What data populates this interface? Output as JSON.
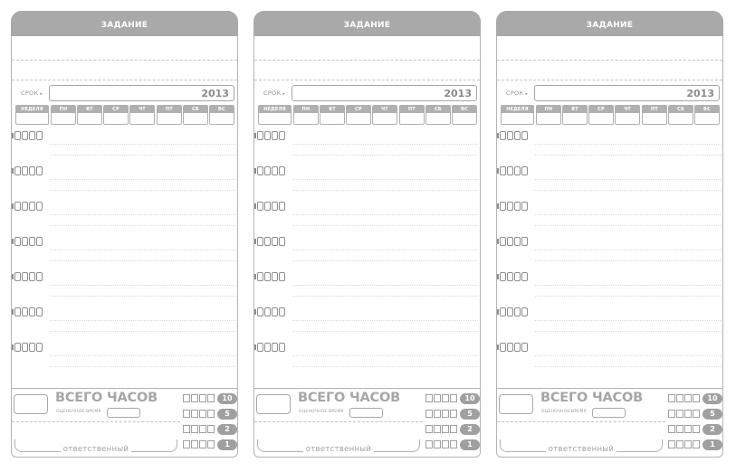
{
  "cards": [
    {
      "header": "ЗАДАНИЕ",
      "srok": "СРОК",
      "year": "2013"
    },
    {
      "header": "ЗАДАНИЕ",
      "srok": "СРОК",
      "year": "2013"
    },
    {
      "header": "ЗАДАНИЕ",
      "srok": "СРОК",
      "year": "2013"
    }
  ],
  "week_labels": [
    "НЕДЕЛЯ",
    "ПН",
    "ВТ",
    "СР",
    "ЧТ",
    "ПТ",
    "СБ",
    "ВС"
  ],
  "footer": {
    "total_hours": "ВСЕГО ЧАСОВ",
    "estimated_time": "ОЦЕНОЧНОЕ ВРЕМЯ",
    "responsible": "ответственный",
    "hour_values": [
      "10",
      "5",
      "2",
      "1"
    ]
  },
  "task_row_count": 7,
  "colors": {
    "accent_gray": "#a9a9a9",
    "line_gray": "#b4b4b4"
  }
}
